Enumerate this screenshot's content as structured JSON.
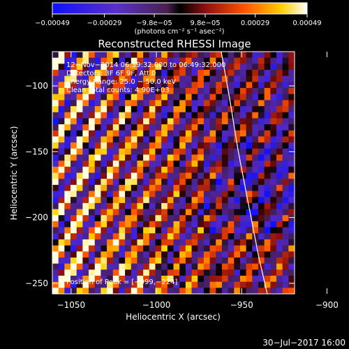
{
  "chart_data": {
    "type": "heatmap",
    "title": "Reconstructed RHESSI Image",
    "xlabel": "Heliocentric X (arcsec)",
    "ylabel": "Heliocentric Y (arcsec)",
    "xlim": [
      -1061,
      -919
    ],
    "ylim": [
      -258,
      -74
    ],
    "x_ticks": [
      -1050,
      -1000,
      -950,
      -900
    ],
    "x_tick_labels": [
      "−1050",
      "−1000",
      "−950",
      "−900"
    ],
    "y_ticks": [
      -100,
      -150,
      -200,
      -250
    ],
    "y_tick_labels": [
      "−100",
      "−150",
      "−200",
      "−250"
    ],
    "colorbar": {
      "ticks": [
        -0.00049,
        -0.00029,
        -9.8e-05,
        9.8e-05,
        0.00029,
        0.00049
      ],
      "tick_labels": [
        "−0.00049",
        "−0.00029",
        "−9.8e−05",
        "9.8e−05",
        "0.00029",
        "0.00049"
      ],
      "units_label": "(photons cm⁻² s⁻¹ asec⁻²)",
      "range": [
        -0.00049,
        0.00049
      ]
    },
    "annotations": {
      "time_range": "12−Nov−2014 06:39:32.000 to 06:49:32.000",
      "detectors": "Detectors: 3F 6F 9F, Att 0",
      "energy_range": "Energy Range: 25.0 − 50.0 keV",
      "algorithm": "Clean    Total counts: 4.90E+03",
      "peak": "Position of Peak = [−999,−224]"
    },
    "limb_curve": {
      "x": [
        -962,
        -957,
        -952,
        -946,
        -940,
        -935
      ],
      "y": [
        -74,
        -110,
        -150,
        -190,
        -230,
        -258
      ]
    },
    "grid": false
  },
  "footer": {
    "date": "30−Jul−2017 16:00"
  },
  "colors": {
    "background": "#000000",
    "text": "#ffffff",
    "limb": "#ffffff"
  }
}
